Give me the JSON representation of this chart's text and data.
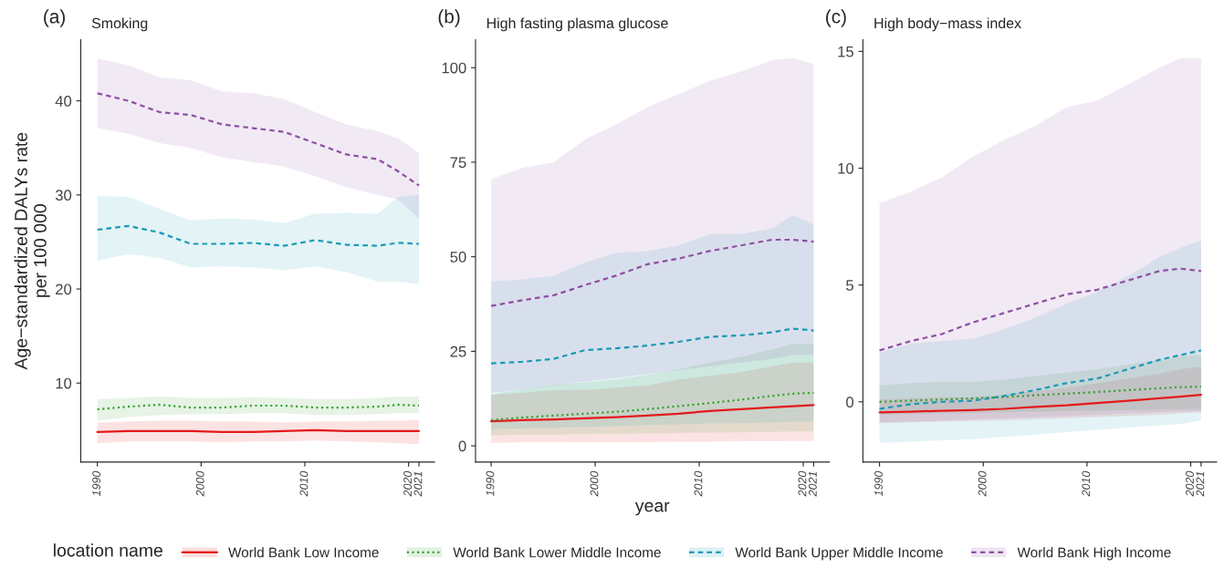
{
  "chart_data": [
    {
      "type": "line",
      "title": "(a)",
      "subtitle": "Smoking",
      "ylabel": "Age−standardized DALYs rate\nper 100 000",
      "legend_title": "location name",
      "legend": "bottom",
      "x": [
        1990,
        1993,
        1996,
        1999,
        2002,
        2005,
        2008,
        2011,
        2014,
        2017,
        2019,
        2021
      ],
      "xlim": [
        1988.4,
        2022.5
      ],
      "xticks": [
        1990,
        2000,
        2010,
        2020,
        2021
      ],
      "ylim": [
        1.6,
        46.5
      ],
      "yticks": [
        10,
        20,
        30,
        40
      ],
      "grid": false,
      "series": [
        {
          "name": "World Bank Low Income",
          "color": "#e41a1c",
          "line_style": "solid",
          "values": [
            4.8,
            4.9,
            4.9,
            4.9,
            4.8,
            4.8,
            4.9,
            5.0,
            4.9,
            4.9,
            4.9,
            4.9
          ],
          "lower": [
            3.6,
            3.8,
            3.8,
            3.8,
            3.7,
            3.8,
            3.8,
            3.9,
            3.8,
            3.7,
            3.6,
            3.5
          ],
          "upper": [
            5.8,
            5.9,
            6.0,
            6.0,
            5.9,
            5.9,
            5.8,
            5.9,
            5.9,
            6.0,
            6.0,
            6.1
          ]
        },
        {
          "name": "World Bank Lower Middle Income",
          "color": "#33a02c",
          "line_style": "dotted",
          "values": [
            7.2,
            7.5,
            7.7,
            7.4,
            7.4,
            7.6,
            7.6,
            7.4,
            7.4,
            7.5,
            7.7,
            7.6
          ],
          "lower": [
            6.0,
            6.4,
            6.6,
            6.7,
            6.7,
            6.8,
            6.8,
            6.6,
            6.6,
            6.7,
            6.8,
            6.8
          ],
          "upper": [
            8.3,
            8.4,
            8.6,
            8.4,
            8.4,
            8.5,
            8.4,
            8.3,
            8.3,
            8.4,
            8.6,
            8.6
          ]
        },
        {
          "name": "World Bank Upper Middle Income",
          "color": "#1b9ab5",
          "line_style": "dashed",
          "values": [
            26.3,
            26.7,
            26.0,
            24.8,
            24.8,
            24.9,
            24.6,
            25.2,
            24.7,
            24.6,
            24.9,
            24.8
          ],
          "lower": [
            23.0,
            23.7,
            23.3,
            22.3,
            22.4,
            22.3,
            22.0,
            22.4,
            21.8,
            20.8,
            20.8,
            20.5
          ],
          "upper": [
            29.9,
            29.8,
            28.5,
            27.3,
            27.5,
            27.4,
            27.0,
            28.0,
            28.1,
            28.0,
            29.8,
            30.0
          ]
        },
        {
          "name": "World Bank High Income",
          "color": "#8e4fa3",
          "line_style": "dashed",
          "values": [
            40.8,
            40.0,
            38.8,
            38.5,
            37.5,
            37.1,
            36.7,
            35.5,
            34.3,
            33.8,
            32.5,
            31.0
          ],
          "lower": [
            37.1,
            36.5,
            35.5,
            35.0,
            34.0,
            33.5,
            33.0,
            32.0,
            30.8,
            30.0,
            29.5,
            27.5
          ],
          "upper": [
            44.5,
            43.8,
            42.5,
            42.2,
            41.0,
            40.8,
            40.2,
            38.8,
            37.5,
            36.8,
            36.0,
            34.5
          ]
        }
      ]
    },
    {
      "type": "line",
      "title": "(b)",
      "subtitle": "High fasting plasma glucose",
      "xlabel": "year",
      "x": [
        1990,
        1993,
        1996,
        1999,
        2002,
        2005,
        2008,
        2011,
        2014,
        2017,
        2019,
        2021
      ],
      "xlim": [
        1988.5,
        2022.5
      ],
      "xticks": [
        1990,
        2000,
        2010,
        2020,
        2021
      ],
      "ylim": [
        -4.3,
        107.4
      ],
      "yticks": [
        0,
        25,
        50,
        75,
        100
      ],
      "grid": false,
      "series": [
        {
          "name": "World Bank Low Income",
          "color": "#e41a1c",
          "line_style": "solid",
          "values": [
            6.5,
            6.8,
            7.0,
            7.3,
            7.6,
            8.0,
            8.5,
            9.2,
            9.7,
            10.2,
            10.5,
            10.8
          ],
          "lower": [
            0.8,
            0.9,
            0.9,
            1.0,
            1.0,
            1.0,
            1.1,
            1.1,
            1.2,
            1.2,
            1.3,
            1.3
          ],
          "upper": [
            13.5,
            14.0,
            14.7,
            14.8,
            15.3,
            16.0,
            17.5,
            18.5,
            19.5,
            21.0,
            22.0,
            22.0
          ]
        },
        {
          "name": "World Bank Lower Middle Income",
          "color": "#33a02c",
          "line_style": "dotted",
          "values": [
            6.8,
            7.5,
            8.0,
            8.5,
            9.0,
            9.7,
            10.5,
            11.3,
            12.2,
            13.2,
            13.8,
            14.0
          ],
          "lower": [
            2.8,
            2.9,
            3.0,
            3.1,
            3.2,
            3.3,
            3.4,
            3.5,
            3.6,
            3.7,
            3.8,
            3.8
          ],
          "upper": [
            13.5,
            15.0,
            16.2,
            16.8,
            17.5,
            18.7,
            20.3,
            22.0,
            23.5,
            25.5,
            27.0,
            27.0
          ]
        },
        {
          "name": "World Bank Upper Middle Income",
          "color": "#1b9ab5",
          "line_style": "dashed",
          "values": [
            21.8,
            22.2,
            23.0,
            25.3,
            25.8,
            26.5,
            27.5,
            28.8,
            29.2,
            30.0,
            31.0,
            30.5
          ],
          "lower": [
            4.5,
            4.6,
            4.8,
            5.0,
            5.2,
            5.5,
            5.7,
            5.9,
            6.0,
            6.2,
            6.4,
            6.5
          ],
          "upper": [
            43.5,
            44.0,
            45.0,
            48.5,
            51.0,
            51.5,
            53.0,
            56.0,
            56.0,
            57.5,
            61.0,
            58.5
          ]
        },
        {
          "name": "World Bank High Income",
          "color": "#8e4fa3",
          "line_style": "dashed",
          "values": [
            37.0,
            38.5,
            39.8,
            42.5,
            45.0,
            48.0,
            49.5,
            51.5,
            53.0,
            54.5,
            54.5,
            54.0
          ],
          "lower": [
            14.0,
            15.0,
            16.0,
            17.0,
            18.0,
            19.0,
            20.0,
            21.0,
            22.0,
            23.0,
            24.0,
            24.0
          ],
          "upper": [
            70.5,
            73.5,
            75.0,
            81.0,
            85.0,
            89.5,
            93.0,
            96.5,
            99.0,
            102.0,
            102.5,
            101.0
          ]
        }
      ]
    },
    {
      "type": "line",
      "title": "(c)",
      "subtitle": "High body−mass index",
      "x": [
        1990,
        1993,
        1996,
        1999,
        2002,
        2005,
        2008,
        2011,
        2014,
        2017,
        2019,
        2021
      ],
      "xlim": [
        1988.4,
        2022.5
      ],
      "xticks": [
        1990,
        2000,
        2010,
        2020,
        2021
      ],
      "ylim": [
        -2.58,
        15.5
      ],
      "yticks": [
        0,
        5,
        10,
        15
      ],
      "grid": false,
      "series": [
        {
          "name": "World Bank Low Income",
          "color": "#e41a1c",
          "line_style": "solid",
          "values": [
            -0.45,
            -0.42,
            -0.38,
            -0.35,
            -0.3,
            -0.22,
            -0.15,
            -0.05,
            0.05,
            0.15,
            0.22,
            0.3
          ],
          "lower": [
            -0.9,
            -0.88,
            -0.85,
            -0.82,
            -0.8,
            -0.75,
            -0.7,
            -0.65,
            -0.6,
            -0.55,
            -0.5,
            -0.45
          ],
          "upper": [
            0.1,
            0.15,
            0.2,
            0.2,
            0.3,
            0.45,
            0.6,
            0.8,
            1.0,
            1.2,
            1.4,
            1.5
          ]
        },
        {
          "name": "World Bank Lower Middle Income",
          "color": "#33a02c",
          "line_style": "dotted",
          "values": [
            0.0,
            0.05,
            0.1,
            0.15,
            0.2,
            0.28,
            0.35,
            0.42,
            0.5,
            0.58,
            0.63,
            0.65
          ],
          "lower": [
            -0.55,
            -0.52,
            -0.5,
            -0.48,
            -0.45,
            -0.42,
            -0.4,
            -0.38,
            -0.36,
            -0.34,
            -0.32,
            -0.3
          ],
          "upper": [
            0.7,
            0.8,
            0.85,
            0.85,
            0.95,
            1.1,
            1.25,
            1.4,
            1.6,
            1.8,
            1.95,
            2.0
          ]
        },
        {
          "name": "World Bank Upper Middle Income",
          "color": "#1b9ab5",
          "line_style": "dashed",
          "values": [
            -0.3,
            -0.1,
            0.0,
            0.05,
            0.25,
            0.5,
            0.8,
            1.0,
            1.4,
            1.8,
            2.0,
            2.2
          ],
          "lower": [
            -1.75,
            -1.7,
            -1.65,
            -1.6,
            -1.5,
            -1.4,
            -1.3,
            -1.2,
            -1.1,
            -1.0,
            -0.95,
            -0.8
          ],
          "upper": [
            2.1,
            2.5,
            2.6,
            2.7,
            3.1,
            3.6,
            4.2,
            4.7,
            5.4,
            6.2,
            6.6,
            6.9
          ]
        },
        {
          "name": "World Bank High Income",
          "color": "#8e4fa3",
          "line_style": "dashed",
          "values": [
            2.2,
            2.6,
            2.9,
            3.4,
            3.8,
            4.2,
            4.6,
            4.8,
            5.2,
            5.6,
            5.7,
            5.6
          ],
          "lower": [
            -0.9,
            -0.85,
            -0.8,
            -0.75,
            -0.7,
            -0.65,
            -0.6,
            -0.55,
            -0.5,
            -0.45,
            -0.42,
            -0.4
          ],
          "upper": [
            8.5,
            9.0,
            9.6,
            10.5,
            11.2,
            11.8,
            12.6,
            12.9,
            13.6,
            14.3,
            14.7,
            14.7
          ]
        }
      ]
    }
  ]
}
